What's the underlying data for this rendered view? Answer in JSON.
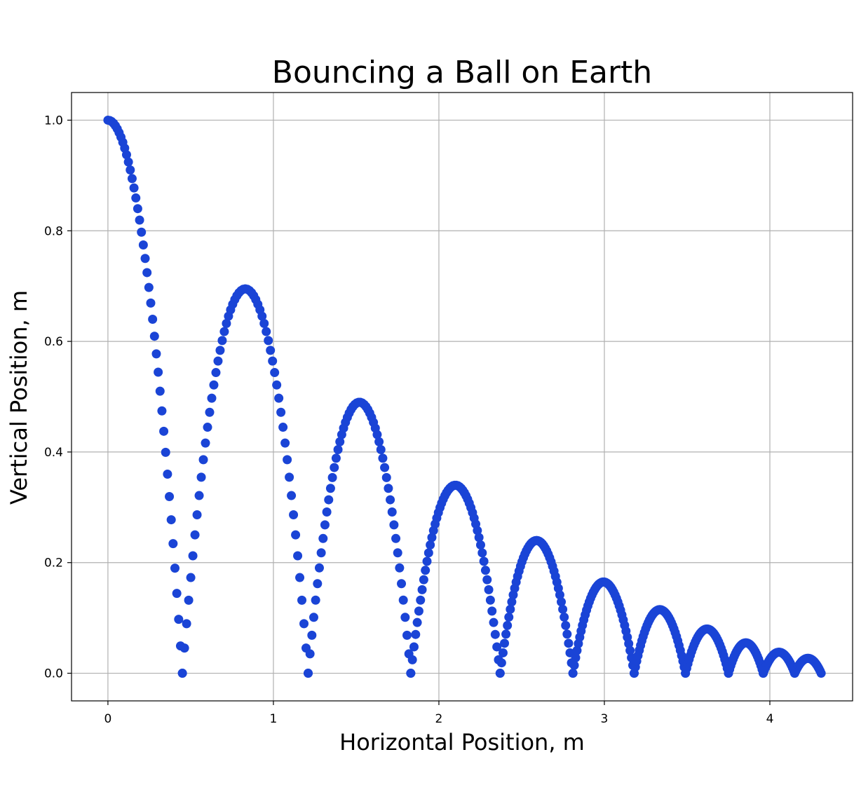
{
  "chart_data": {
    "type": "scatter",
    "title": "Bouncing a Ball on Earth",
    "xlabel": "Horizontal Position, m",
    "ylabel": "Vertical Position, m",
    "xlim": [
      -0.22,
      4.5
    ],
    "ylim": [
      -0.05,
      1.05
    ],
    "xticks": [
      0,
      1,
      2,
      3,
      4
    ],
    "xtick_labels": [
      "0",
      "1",
      "2",
      "3",
      "4"
    ],
    "yticks": [
      0.0,
      0.2,
      0.4,
      0.6,
      0.8,
      1.0
    ],
    "ytick_labels": [
      "0.0",
      "0.2",
      "0.4",
      "0.6",
      "0.8",
      "1.0"
    ],
    "grid": true,
    "marker_color": "#1a44d6",
    "bounce_segments": [
      {
        "x_start": 0.0,
        "x_end": 0.45,
        "peak_x": 0.0,
        "peak_y": 1.0,
        "start_y": 1.0,
        "n": 40
      },
      {
        "x_start": 0.45,
        "x_end": 1.21,
        "peak_x": 0.83,
        "peak_y": 0.695,
        "start_y": 0.0,
        "n": 60
      },
      {
        "x_start": 1.21,
        "x_end": 1.83,
        "peak_x": 1.52,
        "peak_y": 0.49,
        "start_y": 0.0,
        "n": 55
      },
      {
        "x_start": 1.83,
        "x_end": 2.37,
        "peak_x": 2.1,
        "peak_y": 0.34,
        "start_y": 0.0,
        "n": 55
      },
      {
        "x_start": 2.37,
        "x_end": 2.81,
        "peak_x": 2.59,
        "peak_y": 0.24,
        "start_y": 0.0,
        "n": 50
      },
      {
        "x_start": 2.81,
        "x_end": 3.18,
        "peak_x": 2.995,
        "peak_y": 0.165,
        "start_y": 0.0,
        "n": 45
      },
      {
        "x_start": 3.18,
        "x_end": 3.49,
        "peak_x": 3.335,
        "peak_y": 0.115,
        "start_y": 0.0,
        "n": 40
      },
      {
        "x_start": 3.49,
        "x_end": 3.75,
        "peak_x": 3.62,
        "peak_y": 0.08,
        "start_y": 0.0,
        "n": 35
      },
      {
        "x_start": 3.75,
        "x_end": 3.96,
        "peak_x": 3.855,
        "peak_y": 0.055,
        "start_y": 0.0,
        "n": 30
      },
      {
        "x_start": 3.96,
        "x_end": 4.15,
        "peak_x": 4.055,
        "peak_y": 0.038,
        "start_y": 0.0,
        "n": 28
      },
      {
        "x_start": 4.15,
        "x_end": 4.31,
        "peak_x": 4.23,
        "peak_y": 0.027,
        "start_y": 0.0,
        "n": 26
      }
    ]
  }
}
